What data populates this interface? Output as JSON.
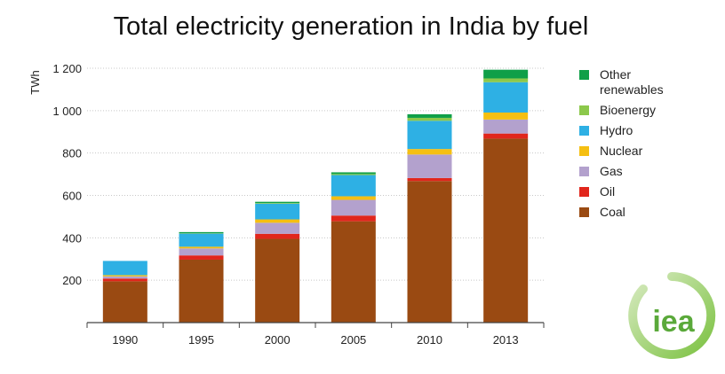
{
  "chart_data": {
    "type": "bar",
    "stacked": true,
    "title": "Total electricity generation in India by fuel",
    "ylabel": "TWh",
    "xlabel": "",
    "ylim": [
      0,
      1250
    ],
    "yticks": [
      200,
      400,
      600,
      800,
      1000,
      1200
    ],
    "ytick_labels": [
      "200",
      "400",
      "600",
      "800",
      "1 000",
      "1 200"
    ],
    "grid": true,
    "legend_position": "right",
    "categories": [
      "1990",
      "1995",
      "2000",
      "2005",
      "2010",
      "2013"
    ],
    "series": [
      {
        "name": "Coal",
        "color": "#9a4a12",
        "values": [
          195,
          297,
          395,
          478,
          668,
          868
        ]
      },
      {
        "name": "Oil",
        "color": "#e1261c",
        "values": [
          13,
          20,
          24,
          27,
          14,
          24
        ]
      },
      {
        "name": "Gas",
        "color": "#b3a1cd",
        "values": [
          10,
          33,
          52,
          74,
          111,
          66
        ]
      },
      {
        "name": "Nuclear",
        "color": "#f5bf12",
        "values": [
          6,
          8,
          16,
          17,
          26,
          33
        ]
      },
      {
        "name": "Hydro",
        "color": "#2eb0e4",
        "values": [
          67,
          62,
          74,
          100,
          133,
          143
        ]
      },
      {
        "name": "Bioenergy",
        "color": "#8cc84b",
        "values": [
          0,
          2,
          3,
          5,
          14,
          18
        ]
      },
      {
        "name": "Other renewables",
        "color": "#0f9f48",
        "values": [
          0,
          5,
          6,
          8,
          17,
          41
        ]
      }
    ],
    "legend_order": [
      "Other renewables",
      "Bioenergy",
      "Hydro",
      "Nuclear",
      "Gas",
      "Oil",
      "Coal"
    ]
  },
  "logo": {
    "text": "iea",
    "colors": {
      "ring": "#7cc242",
      "text": "#5aa93a"
    }
  }
}
